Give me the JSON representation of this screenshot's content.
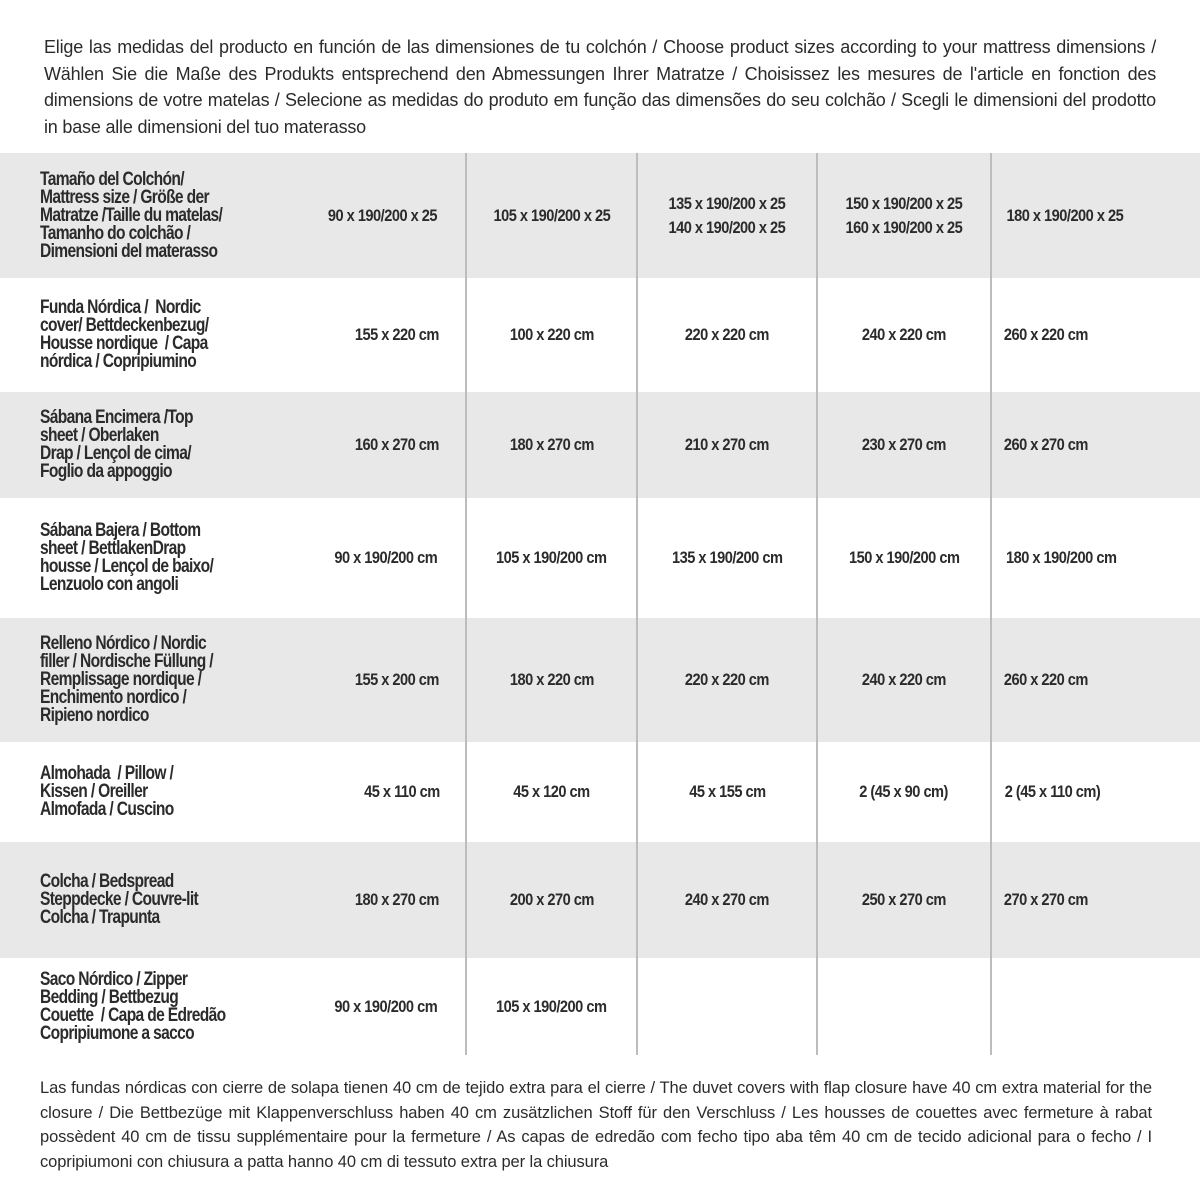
{
  "intro": "Elige las medidas del producto en función de las dimensiones de tu colchón / Choose product sizes according to your mattress dimensions / Wählen Sie die Maße des Produkts entsprechend den Abmessungen Ihrer Matratze / Choisissez les mesures de l'article en fonction des dimensions de votre matelas / Selecione as medidas do produto em função das dimensões do seu colchão / Scegli le dimensioni del prodotto in base alle dimensioni del tuo materasso",
  "rows": [
    {
      "label": "Tamaño del Colchón/\nMattress size / Größe der\nMatratze /Taille du matelas/\nTamanho do colchão /\nDimensioni del materasso",
      "values": [
        "90 x 190/200 x 25",
        "105 x 190/200 x 25",
        "135 x 190/200 x 25\n140 x 190/200 x 25",
        "150 x 190/200 x 25\n160 x 190/200 x 25",
        "180 x 190/200 x 25"
      ]
    },
    {
      "label": "Funda Nórdica /  Nordic\ncover/ Bettdeckenbezug/\nHousse nordique  / Capa\nnórdica / Copripiumino",
      "values": [
        "155 x 220 cm",
        "100 x 220 cm",
        "220 x 220 cm",
        "240 x 220 cm",
        "260 x 220 cm"
      ]
    },
    {
      "label": "Sábana Encimera /Top\nsheet / Oberlaken\nDrap / Lençol de cima/\nFoglio da appoggio",
      "values": [
        "160 x 270 cm",
        "180 x 270 cm",
        "210 x 270 cm",
        "230 x 270 cm",
        "260 x 270 cm"
      ]
    },
    {
      "label": "Sábana Bajera / Bottom\nsheet / BettlakenDrap\nhousse / Lençol de baixo/\nLenzuolo con angoli",
      "values": [
        "90 x 190/200 cm",
        "105 x 190/200 cm",
        "135 x 190/200 cm",
        "150 x 190/200 cm",
        "180 x 190/200 cm"
      ]
    },
    {
      "label": "Relleno Nórdico / Nordic\nfiller / Nordische Füllung /\nRemplissage nordique /\nEnchimento nordico /\nRipieno nordico",
      "values": [
        "155 x 200 cm",
        "180 x 220 cm",
        "220 x 220 cm",
        "240 x 220 cm",
        "260 x 220 cm"
      ]
    },
    {
      "label": "Almohada  / Pillow /\nKissen / Oreiller\nAlmofada / Cuscino",
      "values": [
        "45 x 110 cm",
        "45 x 120 cm",
        "45 x 155 cm",
        "2 (45 x 90 cm)",
        "2 (45 x 110 cm)"
      ]
    },
    {
      "label": "Colcha / Bedspread\nSteppdecke / Couvre-lit\nColcha / Trapunta",
      "values": [
        "180 x 270 cm",
        "200 x 270 cm",
        "240 x 270 cm",
        "250 x 270 cm",
        "270 x 270 cm"
      ]
    },
    {
      "label": "Saco Nórdico / Zipper\nBedding / Bettbezug\nCouette  / Capa de Edredão\nCopripiumone a sacco",
      "values": [
        "90 x 190/200 cm",
        "105 x 190/200 cm",
        "",
        "",
        ""
      ]
    }
  ],
  "note": "Las fundas nórdicas con cierre de solapa tienen 40 cm de tejido extra para el cierre  / The duvet covers with flap closure have 40 cm extra material for the closure / Die Bettbezüge mit Klappenverschluss haben 40 cm zusätzlichen Stoff für den Verschluss / Les housses de couettes avec fermeture à rabat possèdent 40 cm de tissu supplémentaire pour la fermeture / As capas de edredão com fecho tipo aba têm 40 cm de tecido adicional para o fecho / I copripiumoni con chiusura a patta hanno 40 cm di tessuto extra per la chiusura"
}
